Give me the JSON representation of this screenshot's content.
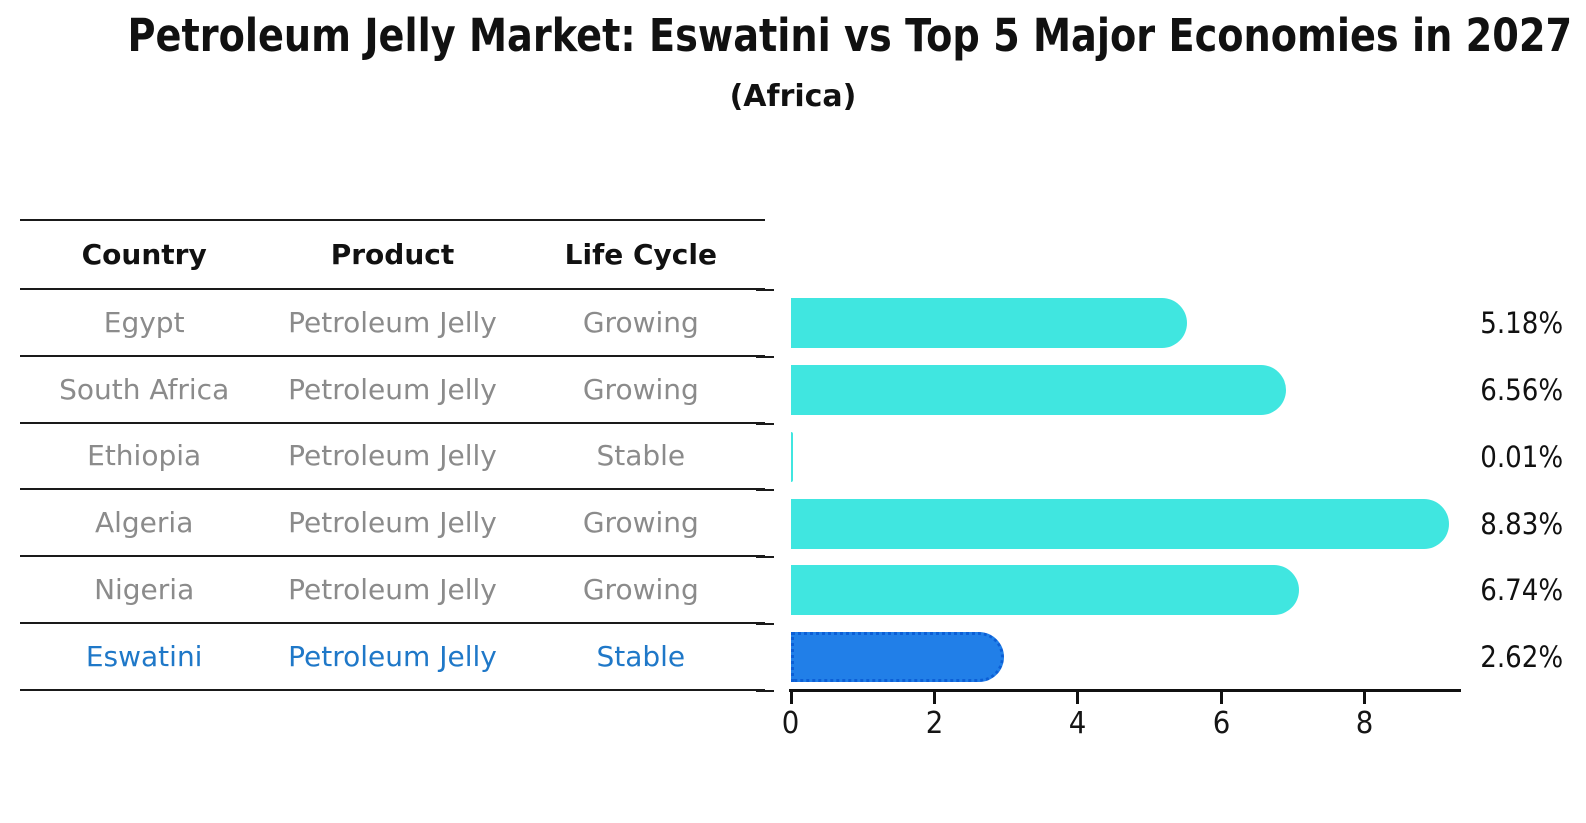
{
  "title": "Petroleum Jelly Market: Eswatini vs Top 5 Major Economies in 2027",
  "subtitle": "(Africa)",
  "table": {
    "headers": [
      "Country",
      "Product",
      "Life Cycle"
    ],
    "rows": [
      {
        "country": "Egypt",
        "product": "Petroleum Jelly",
        "life_cycle": "Growing"
      },
      {
        "country": "South Africa",
        "product": "Petroleum Jelly",
        "life_cycle": "Growing"
      },
      {
        "country": "Ethiopia",
        "product": "Petroleum Jelly",
        "life_cycle": "Stable"
      },
      {
        "country": "Algeria",
        "product": "Petroleum Jelly",
        "life_cycle": "Growing"
      },
      {
        "country": "Nigeria",
        "product": "Petroleum Jelly",
        "life_cycle": "Growing"
      },
      {
        "country": "Eswatini",
        "product": "Petroleum Jelly",
        "life_cycle": "Stable"
      }
    ],
    "highlighted_row": "Eswatini"
  },
  "chart_data": {
    "type": "bar",
    "orientation": "horizontal",
    "categories": [
      "Egypt",
      "South Africa",
      "Ethiopia",
      "Algeria",
      "Nigeria",
      "Eswatini"
    ],
    "values": [
      5.18,
      6.56,
      0.01,
      8.83,
      6.74,
      2.62
    ],
    "value_labels": [
      "5.18%",
      "6.56%",
      "0.01%",
      "8.83%",
      "6.74%",
      "2.62%"
    ],
    "unit": "%",
    "x_ticks": [
      0,
      2,
      4,
      6,
      8
    ],
    "xlim": [
      0,
      9.3
    ],
    "grid": false,
    "legend": false,
    "bar_color": "#40E6E0",
    "highlight_index": 5,
    "highlight_bar_color": "#217FE8",
    "highlight_border_color": "#0C5FD6"
  },
  "colors": {
    "heading_text": "#111111",
    "body_text": "#8B8B8B",
    "highlight_text": "#1F78C8",
    "table_line": "#1A1A1A",
    "axis": "#111111",
    "background": "#FFFFFF"
  }
}
